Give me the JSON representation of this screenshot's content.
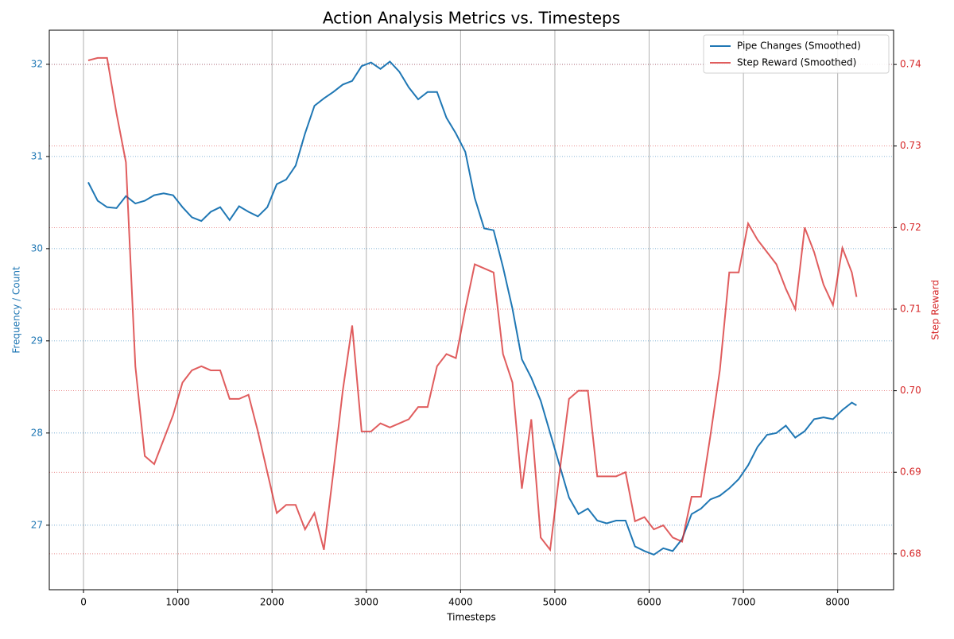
{
  "chart_data": {
    "type": "line",
    "title": "Action Analysis Metrics vs. Timesteps",
    "x_label": "Timesteps",
    "y_label": "Frequency / Count",
    "y2_label": "Step Reward",
    "x": [
      50,
      150,
      250,
      350,
      450,
      550,
      650,
      750,
      850,
      950,
      1050,
      1150,
      1250,
      1350,
      1450,
      1550,
      1650,
      1750,
      1850,
      1950,
      2050,
      2150,
      2250,
      2350,
      2450,
      2550,
      2650,
      2750,
      2850,
      2950,
      3050,
      3150,
      3250,
      3350,
      3450,
      3550,
      3650,
      3750,
      3850,
      3950,
      4050,
      4150,
      4250,
      4350,
      4450,
      4550,
      4650,
      4750,
      4850,
      4950,
      5050,
      5150,
      5250,
      5350,
      5450,
      5550,
      5650,
      5750,
      5850,
      5950,
      6050,
      6150,
      6250,
      6350,
      6450,
      6550,
      6650,
      6750,
      6850,
      6950,
      7050,
      7150,
      7250,
      7350,
      7450,
      7550,
      7650,
      7750,
      7850,
      7950,
      8050,
      8150,
      8200
    ],
    "series": [
      {
        "name": "Pipe Changes (Smoothed)",
        "color": "#1f77b4",
        "axis": "y",
        "values": [
          30.72,
          30.52,
          30.45,
          30.44,
          30.57,
          30.49,
          30.52,
          30.58,
          30.6,
          30.58,
          30.45,
          30.34,
          30.3,
          30.4,
          30.45,
          30.31,
          30.46,
          30.4,
          30.35,
          30.45,
          30.7,
          30.75,
          30.9,
          31.25,
          31.55,
          31.63,
          31.7,
          31.78,
          31.82,
          31.98,
          32.02,
          31.95,
          32.03,
          31.92,
          31.75,
          31.62,
          31.7,
          31.7,
          31.42,
          31.25,
          31.05,
          30.55,
          30.22,
          30.2,
          29.8,
          29.35,
          28.8,
          28.6,
          28.35,
          28.0,
          27.65,
          27.3,
          27.12,
          27.18,
          27.05,
          27.02,
          27.05,
          27.05,
          26.77,
          26.72,
          26.68,
          26.75,
          26.72,
          26.85,
          27.12,
          27.18,
          27.28,
          27.32,
          27.4,
          27.5,
          27.65,
          27.85,
          27.98,
          28.0,
          28.08,
          27.95,
          28.02,
          28.15,
          28.17,
          28.15,
          28.25,
          28.33,
          28.3
        ]
      },
      {
        "name": "Step Reward (Smoothed)",
        "color": "#d62728",
        "axis": "y2",
        "values": [
          0.7405,
          0.7408,
          0.7408,
          0.734,
          0.728,
          0.703,
          0.692,
          0.691,
          0.694,
          0.697,
          0.701,
          0.7025,
          0.703,
          0.7025,
          0.7025,
          0.699,
          0.699,
          0.6995,
          0.695,
          0.69,
          0.685,
          0.686,
          0.686,
          0.683,
          0.685,
          0.6805,
          0.69,
          0.7,
          0.708,
          0.695,
          0.695,
          0.696,
          0.6955,
          0.696,
          0.6965,
          0.698,
          0.698,
          0.703,
          0.7045,
          0.704,
          0.71,
          0.7155,
          0.715,
          0.7145,
          0.7045,
          0.701,
          0.688,
          0.6965,
          0.682,
          0.6805,
          0.69,
          0.699,
          0.7,
          0.7,
          0.6895,
          0.6895,
          0.6895,
          0.69,
          0.684,
          0.6845,
          0.683,
          0.6835,
          0.682,
          0.6815,
          0.687,
          0.687,
          0.6945,
          0.7025,
          0.7145,
          0.7145,
          0.7205,
          0.7185,
          0.717,
          0.7155,
          0.7125,
          0.71,
          0.72,
          0.717,
          0.713,
          0.7105,
          0.7175,
          0.7145,
          0.7115
        ]
      }
    ],
    "xlim": [
      -363,
      8593
    ],
    "xticks": [
      0,
      1000,
      2000,
      3000,
      4000,
      5000,
      6000,
      7000,
      8000
    ],
    "ylim": [
      26.3,
      32.37
    ],
    "yticks": [
      27,
      28,
      29,
      30,
      31,
      32
    ],
    "y2lim": [
      0.6756,
      0.7442
    ],
    "y2ticks": [
      0.68,
      0.69,
      {
        "value": 0.7,
        "label": "0.70"
      },
      0.71,
      0.72,
      0.73,
      0.74
    ],
    "grid": true,
    "legend": "upper right"
  }
}
